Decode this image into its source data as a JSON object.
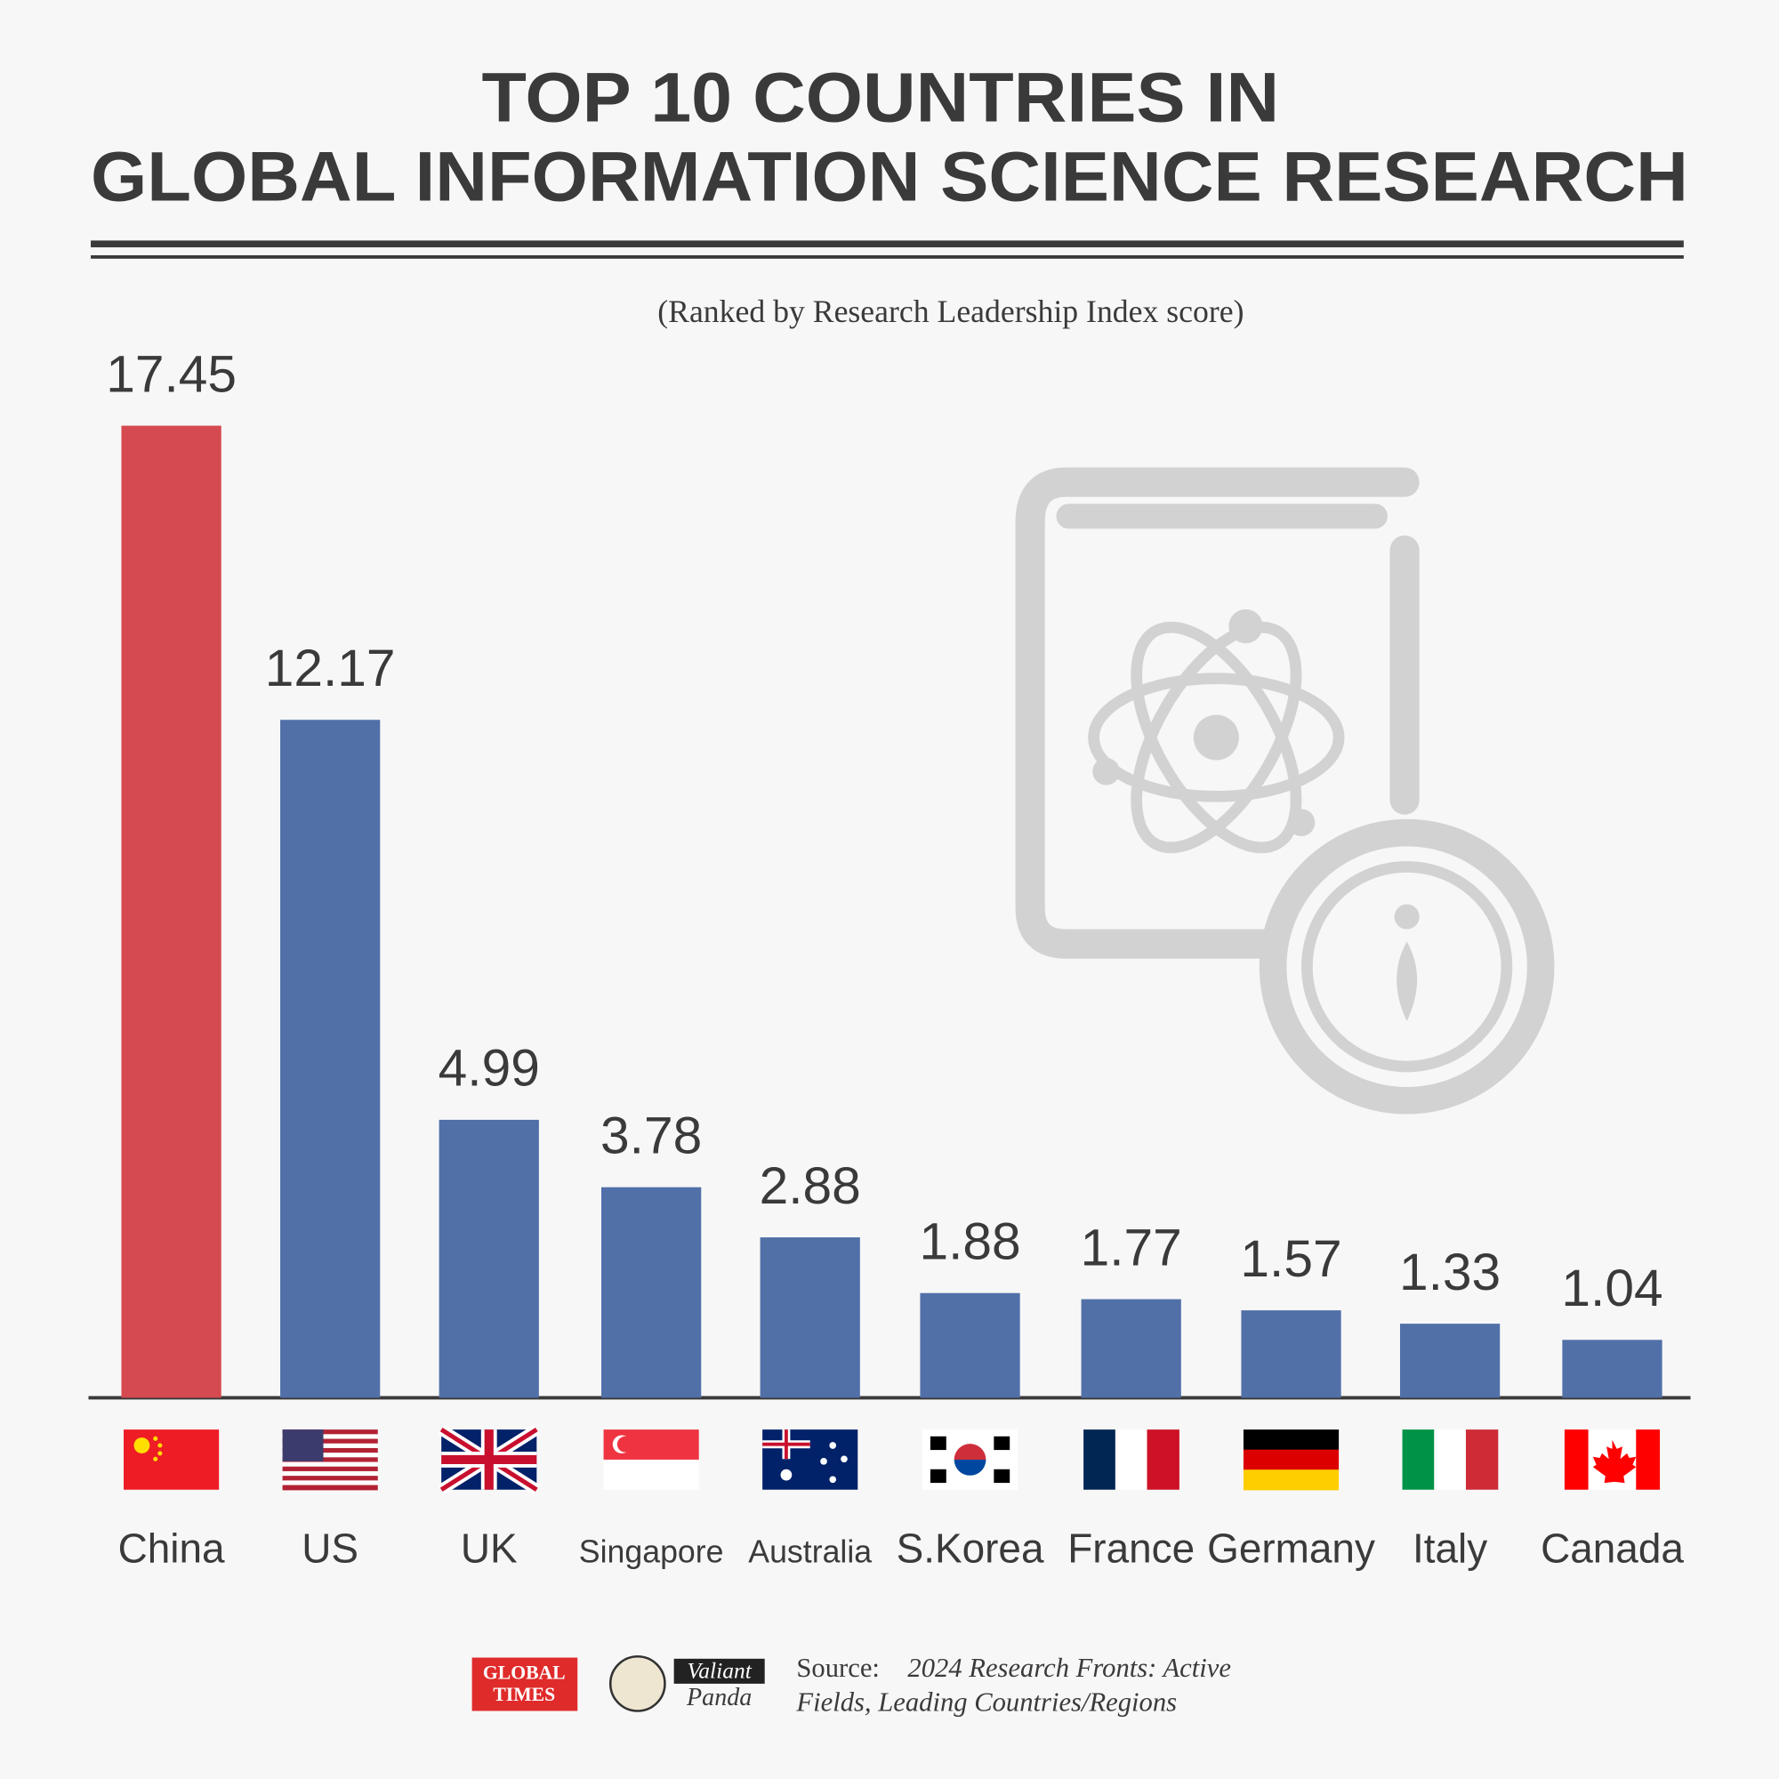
{
  "chart_data": {
    "type": "bar",
    "title": [
      "TOP 10 COUNTRIES IN",
      "GLOBAL INFORMATION SCIENCE RESEARCH"
    ],
    "subtitle": "(Ranked by Research Leadership Index score)",
    "categories": [
      "China",
      "US",
      "UK",
      "Singapore",
      "Australia",
      "S.Korea",
      "France",
      "Germany",
      "Italy",
      "Canada"
    ],
    "values": [
      17.45,
      12.17,
      4.99,
      3.78,
      2.88,
      1.88,
      1.77,
      1.57,
      1.33,
      1.04
    ],
    "colors": [
      "#d44a50",
      "#5170a8",
      "#5170a8",
      "#5170a8",
      "#5170a8",
      "#5170a8",
      "#5170a8",
      "#5170a8",
      "#5170a8",
      "#5170a8"
    ],
    "ylim": [
      0,
      20
    ],
    "source_label": "Source:",
    "source": [
      "2024 Research Fronts: Active",
      "Fields, Leading Countries/Regions"
    ],
    "logos": [
      "GLOBAL",
      "TIMES",
      "Valiant",
      "Panda"
    ]
  }
}
